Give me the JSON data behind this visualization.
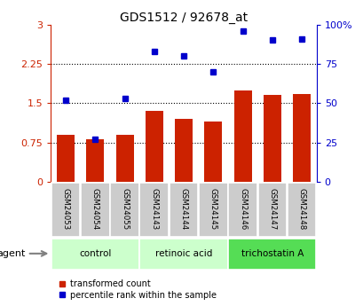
{
  "title": "GDS1512 / 92678_at",
  "samples": [
    "GSM24053",
    "GSM24054",
    "GSM24055",
    "GSM24143",
    "GSM24144",
    "GSM24145",
    "GSM24146",
    "GSM24147",
    "GSM24148"
  ],
  "bar_values": [
    0.9,
    0.82,
    0.9,
    1.35,
    1.2,
    1.15,
    1.75,
    1.65,
    1.68
  ],
  "scatter_values": [
    52,
    27,
    53,
    83,
    80,
    70,
    96,
    90,
    91
  ],
  "bar_color": "#cc2200",
  "scatter_color": "#0000cc",
  "left_yticks": [
    0,
    0.75,
    1.5,
    2.25,
    3
  ],
  "left_ylabels": [
    "0",
    "0.75",
    "1.5",
    "2.25",
    "3"
  ],
  "right_yticks": [
    0,
    25,
    50,
    75,
    100
  ],
  "right_ylabels": [
    "0",
    "25",
    "50",
    "75",
    "100%"
  ],
  "ylim_left": [
    0,
    3
  ],
  "ylim_right": [
    0,
    100
  ],
  "groups": [
    {
      "label": "control",
      "start": 0,
      "end": 3
    },
    {
      "label": "retinoic acid",
      "start": 3,
      "end": 6
    },
    {
      "label": "trichostatin A",
      "start": 6,
      "end": 9
    }
  ],
  "group_colors": [
    "#ccffcc",
    "#ccffcc",
    "#55dd55"
  ],
  "agent_label": "agent",
  "legend_bar": "transformed count",
  "legend_scatter": "percentile rank within the sample",
  "background_color": "#ffffff",
  "sample_bg_color": "#cccccc"
}
